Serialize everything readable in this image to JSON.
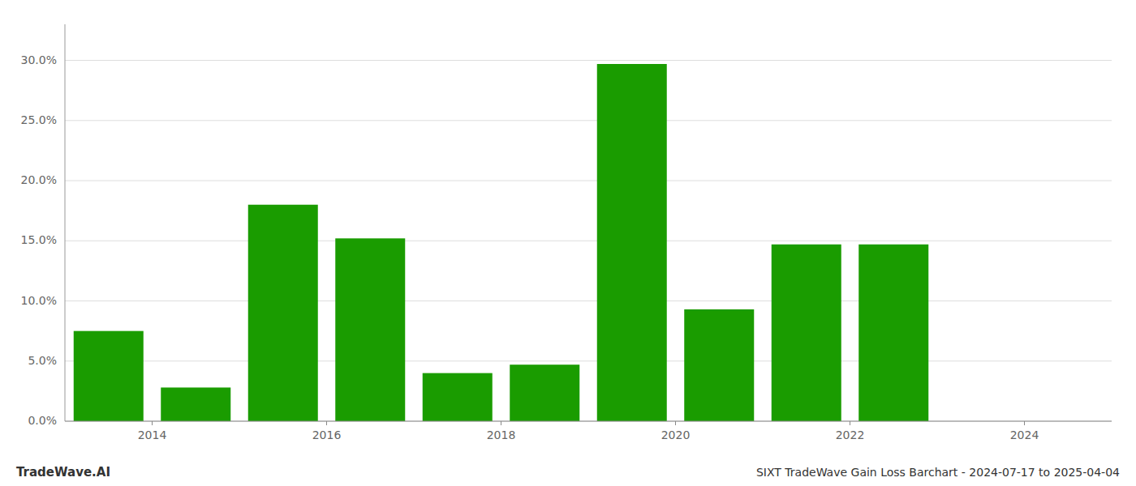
{
  "chart_data": {
    "type": "bar",
    "title": "SIXT TradeWave Gain Loss Barchart - 2024-07-17 to 2025-04-04",
    "annotations": [
      "TradeWave.AI"
    ],
    "x": [
      2013.5,
      2014.5,
      2015.5,
      2016.5,
      2017.5,
      2018.5,
      2019.5,
      2020.5,
      2021.5,
      2022.5
    ],
    "values": [
      0.075,
      0.028,
      0.18,
      0.152,
      0.04,
      0.047,
      0.297,
      0.093,
      0.147,
      0.147
    ],
    "color": "#1a9c00",
    "xlim": [
      2013.0,
      2025.0
    ],
    "xticks": [
      2014,
      2016,
      2018,
      2020,
      2022,
      2024
    ],
    "ylim": [
      0,
      0.33
    ],
    "yticks": [
      {
        "value": 0.0,
        "label": "0.0%"
      },
      {
        "value": 0.05,
        "label": "5.0%"
      },
      {
        "value": 0.1,
        "label": "10.0%"
      },
      {
        "value": 0.15,
        "label": "15.0%"
      },
      {
        "value": 0.2,
        "label": "20.0%"
      },
      {
        "value": 0.25,
        "label": "25.0%"
      },
      {
        "value": 0.3,
        "label": "30.0%"
      }
    ],
    "grid": true
  }
}
